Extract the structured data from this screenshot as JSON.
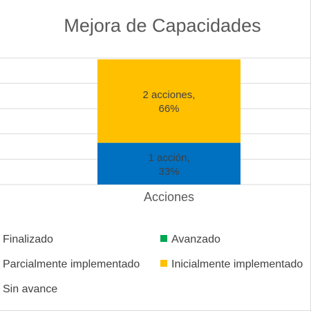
{
  "chart_data": {
    "type": "bar",
    "stacked": true,
    "percent": true,
    "title": "Mejora de Capacidades",
    "categories": [
      "Acciones"
    ],
    "ylim": [
      0,
      1
    ],
    "grid": true,
    "series": [
      {
        "name": "Finalizado",
        "color": "#A5A5A5",
        "values": [
          0
        ],
        "label": ""
      },
      {
        "name": "Parcialmente implementado",
        "color": "#ED7D31",
        "values": [
          0
        ],
        "label": ""
      },
      {
        "name": "Sin avance",
        "color": "#A5A5A5",
        "values": [
          0
        ],
        "label": ""
      },
      {
        "name": "Avanzado",
        "color": "#00A651",
        "values": [
          0
        ],
        "label": ""
      },
      {
        "name": "Inicialmente implementado",
        "color": "#FFC000",
        "values": [
          0.66
        ],
        "label": "2 acciones, 66%"
      },
      {
        "name": "",
        "color": "#0070C0",
        "values": [
          0.33
        ],
        "label": "1 acción, 33%"
      }
    ],
    "segment_labels": [
      {
        "series": 5,
        "lines": [
          "1 acción,",
          "33%"
        ]
      },
      {
        "series": 4,
        "lines": [
          "2 acciones,",
          "66%"
        ]
      }
    ],
    "legend": {
      "placement": "bottom",
      "entries": [
        {
          "text": "Finalizado",
          "color": "#A5A5A5"
        },
        {
          "text": "Avanzado",
          "color": "#00A651"
        },
        {
          "text": "Parcialmente implementado",
          "color": "#ED7D31"
        },
        {
          "text": "Inicialmente implementado",
          "color": "#FFC000"
        },
        {
          "text": "Sin avance",
          "color": "#A5A5A5"
        }
      ]
    }
  }
}
